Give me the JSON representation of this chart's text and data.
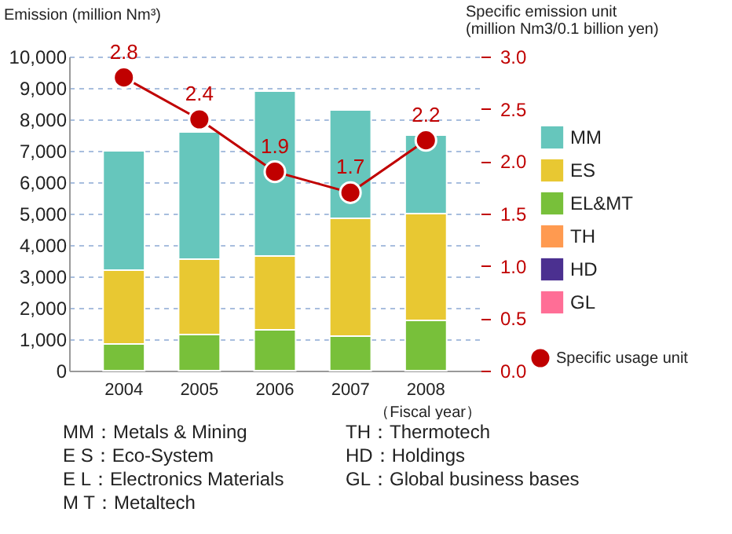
{
  "chart_data": {
    "type": "bar",
    "stacked": true,
    "ylabel": "Emission (million Nm³)",
    "y2label": "Specific emission unit\n(million Nm3/0.1 billion yen)",
    "xlabel": "（Fiscal year）",
    "categories": [
      "2004",
      "2005",
      "2006",
      "2007",
      "2008"
    ],
    "series": [
      {
        "name": "GL",
        "color": "#ff6e96",
        "values": [
          null,
          null,
          null,
          null,
          null
        ]
      },
      {
        "name": "HD",
        "color": "#4b3090",
        "values": [
          null,
          null,
          null,
          null,
          null
        ]
      },
      {
        "name": "TH",
        "color": "#ff9a50",
        "values": [
          null,
          null,
          null,
          null,
          null
        ]
      },
      {
        "name": "EL&MT",
        "color": "#78c03a",
        "values": [
          850,
          1150,
          1300,
          1100,
          1600
        ]
      },
      {
        "name": "ES",
        "color": "#e8c832",
        "values": [
          2350,
          2400,
          2350,
          3750,
          3400
        ]
      },
      {
        "name": "MM",
        "color": "#66c6bc",
        "values": [
          3800,
          4050,
          5250,
          3450,
          2500
        ]
      },
      {
        "name": "Specific usage unit",
        "type": "line",
        "axis": "y2",
        "color": "#c00000",
        "marker": "circle",
        "data_labels": true,
        "values": [
          2.8,
          2.4,
          1.9,
          1.7,
          2.2
        ]
      }
    ],
    "ylim": [
      0,
      10000
    ],
    "yticks": [
      0,
      {
        "value": 1000,
        "label": "1,000"
      },
      {
        "value": 2000,
        "label": "2,000"
      },
      {
        "value": 3000,
        "label": "3,000"
      },
      {
        "value": 4000,
        "label": "4,000"
      },
      {
        "value": 5000,
        "label": "5,000"
      },
      {
        "value": 6000,
        "label": "6,000"
      },
      {
        "value": 7000,
        "label": "7,000"
      },
      {
        "value": 8000,
        "label": "8,000"
      },
      {
        "value": 9000,
        "label": "9,000"
      },
      {
        "value": 10000,
        "label": "10,000"
      }
    ],
    "y2lim": [
      0,
      3
    ],
    "y2ticks": [
      {
        "value": 0,
        "label": "0.0"
      },
      0.5,
      {
        "value": 1,
        "label": "1.0"
      },
      1.5,
      {
        "value": 2,
        "label": "2.0"
      },
      2.5,
      {
        "value": 3,
        "label": "3.0"
      }
    ],
    "grid": "y",
    "legend": "right",
    "annotations": [
      "MM：Metals & Mining",
      "E S：Eco-System",
      "E L：Electronics Materials",
      "M T：Metaltech",
      "TH：Thermotech",
      "HD：Holdings",
      "GL：Global business bases"
    ]
  }
}
